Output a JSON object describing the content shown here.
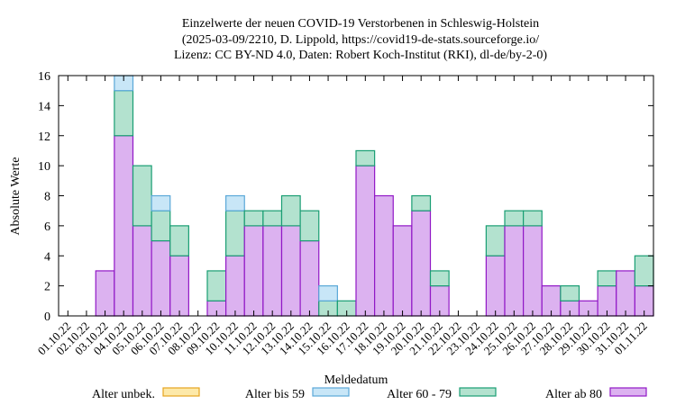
{
  "chart_data": {
    "type": "bar",
    "stacked": true,
    "title_lines": [
      "Einzelwerte der neuen COVID-19 Verstorbenen in Schleswig-Holstein",
      "(2025-03-09/2210, D. Lippold, https://covid19-de-stats.sourceforge.io/",
      "Lizenz: CC BY-ND 4.0, Daten: Robert Koch-Institut (RKI), dl-de/by-2-0)"
    ],
    "xlabel": "Meldedatum",
    "ylabel": "Absolute Werte",
    "ylim": [
      0,
      16
    ],
    "yticks": [
      0,
      2,
      4,
      6,
      8,
      10,
      12,
      14,
      16
    ],
    "grid": false,
    "legend_position": "bottom",
    "categories": [
      "01.10.22",
      "02.10.22",
      "03.10.22",
      "04.10.22",
      "05.10.22",
      "06.10.22",
      "07.10.22",
      "08.10.22",
      "09.10.22",
      "10.10.22",
      "11.10.22",
      "12.10.22",
      "13.10.22",
      "14.10.22",
      "15.10.22",
      "16.10.22",
      "17.10.22",
      "18.10.22",
      "19.10.22",
      "20.10.22",
      "21.10.22",
      "22.10.22",
      "23.10.22",
      "24.10.22",
      "25.10.22",
      "26.10.22",
      "27.10.22",
      "28.10.22",
      "29.10.22",
      "30.10.22",
      "31.10.22",
      "01.11.22"
    ],
    "series": [
      {
        "name": "Alter unbek.",
        "fill": "#fde9a9",
        "stroke": "#e6a41e",
        "values": [
          0,
          0,
          0,
          0,
          0,
          0,
          0,
          0,
          0,
          0,
          0,
          0,
          0,
          0,
          0,
          0,
          0,
          0,
          0,
          0,
          0,
          0,
          0,
          0,
          0,
          0,
          0,
          0,
          0,
          0,
          0,
          0
        ]
      },
      {
        "name": "Alter bis 59",
        "fill": "#c8e6f7",
        "stroke": "#5aa8d8",
        "values": [
          0,
          0,
          0,
          1,
          0,
          1,
          0,
          0,
          0,
          1,
          0,
          0,
          0,
          0,
          1,
          0,
          0,
          0,
          0,
          0,
          0,
          0,
          0,
          0,
          0,
          0,
          0,
          0,
          0,
          0,
          0,
          0
        ]
      },
      {
        "name": "Alter 60 - 79",
        "fill": "#b3e2cf",
        "stroke": "#199e73",
        "values": [
          0,
          0,
          0,
          3,
          4,
          2,
          2,
          0,
          2,
          3,
          1,
          1,
          2,
          2,
          1,
          1,
          1,
          0,
          0,
          1,
          1,
          0,
          0,
          2,
          1,
          1,
          0,
          1,
          0,
          1,
          0,
          2
        ]
      },
      {
        "name": "Alter ab 80",
        "fill": "#dcb2f0",
        "stroke": "#9118c6",
        "values": [
          0,
          0,
          3,
          12,
          6,
          5,
          4,
          0,
          1,
          4,
          6,
          6,
          6,
          5,
          0,
          0,
          10,
          8,
          6,
          7,
          2,
          0,
          0,
          4,
          6,
          6,
          2,
          1,
          1,
          2,
          3,
          2
        ]
      }
    ]
  }
}
